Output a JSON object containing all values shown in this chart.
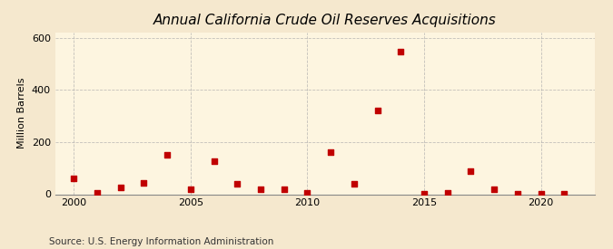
{
  "title": "Annual California Crude Oil Reserves Acquisitions",
  "ylabel": "Million Barrels",
  "source": "Source: U.S. Energy Information Administration",
  "years": [
    2000,
    2001,
    2002,
    2003,
    2004,
    2005,
    2006,
    2007,
    2008,
    2009,
    2010,
    2011,
    2012,
    2013,
    2014,
    2015,
    2016,
    2017,
    2018,
    2019,
    2020,
    2021
  ],
  "values": [
    60,
    5,
    25,
    45,
    150,
    20,
    125,
    40,
    20,
    20,
    5,
    160,
    40,
    320,
    545,
    3,
    5,
    90,
    20,
    3,
    2,
    3
  ],
  "marker_color": "#c00000",
  "marker_size": 25,
  "background_color": "#f5e8ce",
  "plot_bg_color": "#fdf5e0",
  "grid_color": "#aaaaaa",
  "xlim": [
    1999.2,
    2022.3
  ],
  "ylim": [
    0,
    620
  ],
  "yticks": [
    0,
    200,
    400,
    600
  ],
  "xticks": [
    2000,
    2005,
    2010,
    2015,
    2020
  ],
  "title_fontsize": 11,
  "label_fontsize": 8,
  "tick_fontsize": 8,
  "source_fontsize": 7.5
}
